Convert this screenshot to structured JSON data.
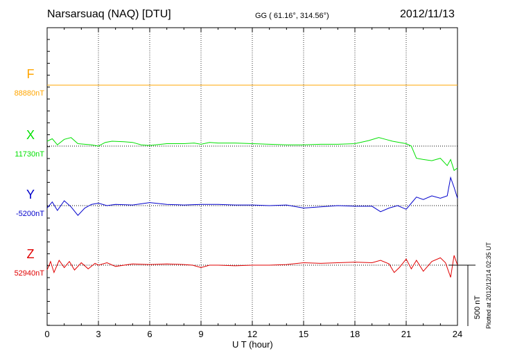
{
  "header": {
    "station": "Narsarsuaq (NAQ)  [DTU]",
    "coords": "GG ( 61.16°, 314.56°)",
    "date": "2012/11/13"
  },
  "footer": {
    "plotted": "Plotted at 2012/12/14 02:35 UT"
  },
  "chart_data": {
    "type": "line",
    "xlabel": "U T (hour)",
    "xlim": [
      0,
      24
    ],
    "xticks": [
      0,
      3,
      6,
      9,
      12,
      15,
      18,
      21,
      24
    ],
    "grid": true,
    "scale_bar": {
      "label": "500 nT",
      "value_nT": 500
    },
    "colors": {
      "F": "#ffa500",
      "X": "#00e000",
      "Y": "#0000cc",
      "Z": "#e00000"
    },
    "series": [
      {
        "name": "F",
        "baseline_label": "88880nT",
        "x": [
          0,
          24
        ],
        "values": [
          0,
          0
        ]
      },
      {
        "name": "X",
        "baseline_label": "11730nT",
        "x": [
          0,
          0.3,
          0.6,
          1.0,
          1.4,
          1.8,
          2.2,
          2.6,
          3.0,
          3.4,
          3.8,
          4.5,
          5.0,
          5.5,
          6.0,
          7.0,
          8.0,
          8.6,
          9.0,
          9.5,
          10.0,
          11.0,
          12.0,
          13.0,
          14.0,
          15.0,
          16.0,
          17.0,
          18.0,
          18.8,
          19.4,
          19.8,
          20.2,
          20.6,
          21.0,
          21.3,
          21.6,
          22.0,
          22.5,
          23.0,
          23.4,
          23.6,
          23.8,
          24.0
        ],
        "values": [
          40,
          60,
          10,
          55,
          70,
          20,
          15,
          10,
          0,
          30,
          40,
          35,
          30,
          10,
          5,
          20,
          20,
          25,
          15,
          30,
          25,
          25,
          20,
          15,
          10,
          10,
          15,
          15,
          20,
          45,
          70,
          55,
          40,
          30,
          20,
          0,
          -100,
          -110,
          -120,
          -100,
          -160,
          -110,
          -200,
          -180
        ]
      },
      {
        "name": "Y",
        "baseline_label": "-5200nT",
        "x": [
          0,
          0.3,
          0.6,
          1.0,
          1.4,
          1.8,
          2.2,
          2.6,
          3.0,
          3.5,
          4.0,
          5.0,
          6.0,
          7.0,
          8.0,
          9.0,
          10.0,
          11.0,
          12.0,
          13.0,
          14.0,
          15.0,
          16.0,
          17.0,
          18.0,
          19.0,
          19.5,
          20.0,
          20.5,
          21.0,
          21.3,
          21.6,
          22.0,
          22.5,
          23.0,
          23.4,
          23.6,
          23.8,
          24.0
        ],
        "values": [
          -20,
          30,
          -40,
          40,
          -10,
          -80,
          -20,
          10,
          20,
          0,
          10,
          5,
          25,
          10,
          5,
          10,
          10,
          5,
          5,
          0,
          5,
          -20,
          -10,
          0,
          -5,
          -5,
          -50,
          -20,
          0,
          -30,
          20,
          70,
          50,
          80,
          60,
          80,
          230,
          150,
          60
        ]
      },
      {
        "name": "Z",
        "baseline_label": "52940nT",
        "x": [
          0,
          0.2,
          0.4,
          0.7,
          1.0,
          1.3,
          1.6,
          2.0,
          2.4,
          2.8,
          3.0,
          3.5,
          4.0,
          5.0,
          6.0,
          7.0,
          8.0,
          8.5,
          9.0,
          9.5,
          10.0,
          11.0,
          12.0,
          13.0,
          14.0,
          15.0,
          16.0,
          17.0,
          18.0,
          19.0,
          19.5,
          20.0,
          20.3,
          20.6,
          21.0,
          21.3,
          21.6,
          22.0,
          22.5,
          23.0,
          23.3,
          23.6,
          23.8,
          24.0
        ],
        "values": [
          -40,
          30,
          -60,
          40,
          -20,
          30,
          -40,
          20,
          -30,
          15,
          0,
          20,
          -10,
          10,
          5,
          10,
          5,
          0,
          -20,
          0,
          0,
          -5,
          0,
          0,
          5,
          20,
          15,
          20,
          25,
          20,
          40,
          10,
          -60,
          -20,
          50,
          -30,
          40,
          -50,
          30,
          60,
          20,
          -100,
          80,
          0
        ]
      }
    ]
  }
}
